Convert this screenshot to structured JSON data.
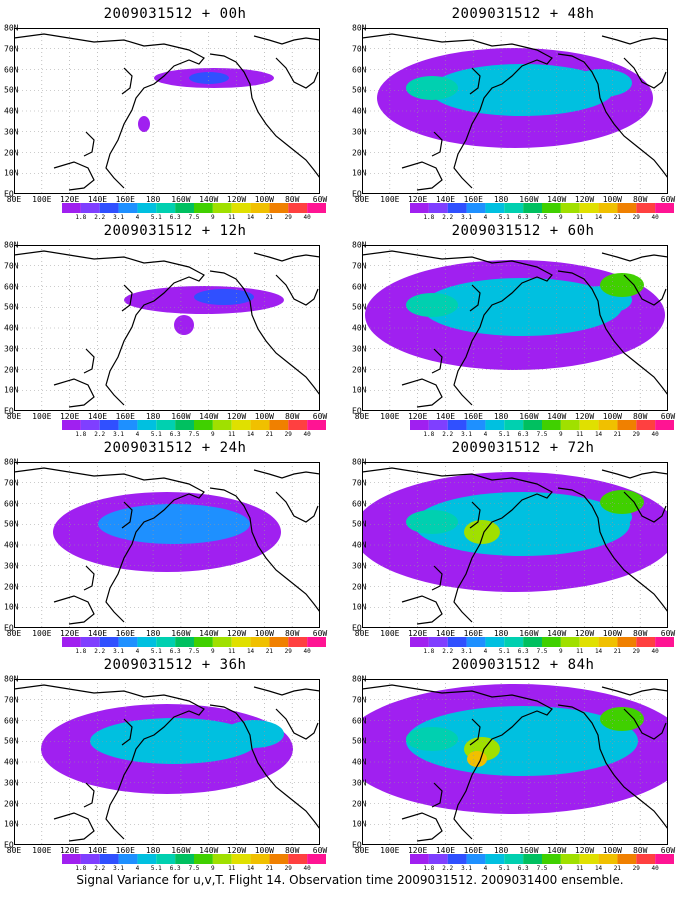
{
  "panels": [
    {
      "title": "2009031512 + 00h",
      "column": "left",
      "row": 0,
      "intensity": 0
    },
    {
      "title": "2009031512 + 12h",
      "column": "left",
      "row": 1,
      "intensity": 1
    },
    {
      "title": "2009031512 + 24h",
      "column": "left",
      "row": 2,
      "intensity": 2
    },
    {
      "title": "2009031512 + 36h",
      "column": "left",
      "row": 3,
      "intensity": 3
    },
    {
      "title": "2009031512 + 48h",
      "column": "right",
      "row": 0,
      "intensity": 4
    },
    {
      "title": "2009031512 + 60h",
      "column": "right",
      "row": 1,
      "intensity": 5
    },
    {
      "title": "2009031512 + 72h",
      "column": "right",
      "row": 2,
      "intensity": 6
    },
    {
      "title": "2009031512 + 84h",
      "column": "right",
      "row": 3,
      "intensity": 7
    }
  ],
  "axes": {
    "x_ticks": [
      "80E",
      "100E",
      "120E",
      "140E",
      "160E",
      "180",
      "160W",
      "140W",
      "120W",
      "100W",
      "80W",
      "60W"
    ],
    "y_ticks": [
      "80N",
      "70N",
      "60N",
      "50N",
      "40N",
      "30N",
      "20N",
      "10N",
      "EQ"
    ]
  },
  "colorbar": {
    "labels": [
      "1.8",
      "2.2",
      "3.1",
      "4",
      "5.1",
      "6.3",
      "7.5",
      "9",
      "11",
      "14",
      "21",
      "29",
      "40"
    ],
    "colors": [
      "#a020f0",
      "#7f3fff",
      "#3050ff",
      "#1e90ff",
      "#00c0e0",
      "#00d0b0",
      "#00c060",
      "#40d000",
      "#a0e000",
      "#e0e000",
      "#f0c000",
      "#f08000",
      "#ff4040",
      "#ff1493"
    ]
  },
  "footer": "Signal Variance for u,v,T. Flight 14. Observation time 2009031512. 2009031400 ensemble."
}
